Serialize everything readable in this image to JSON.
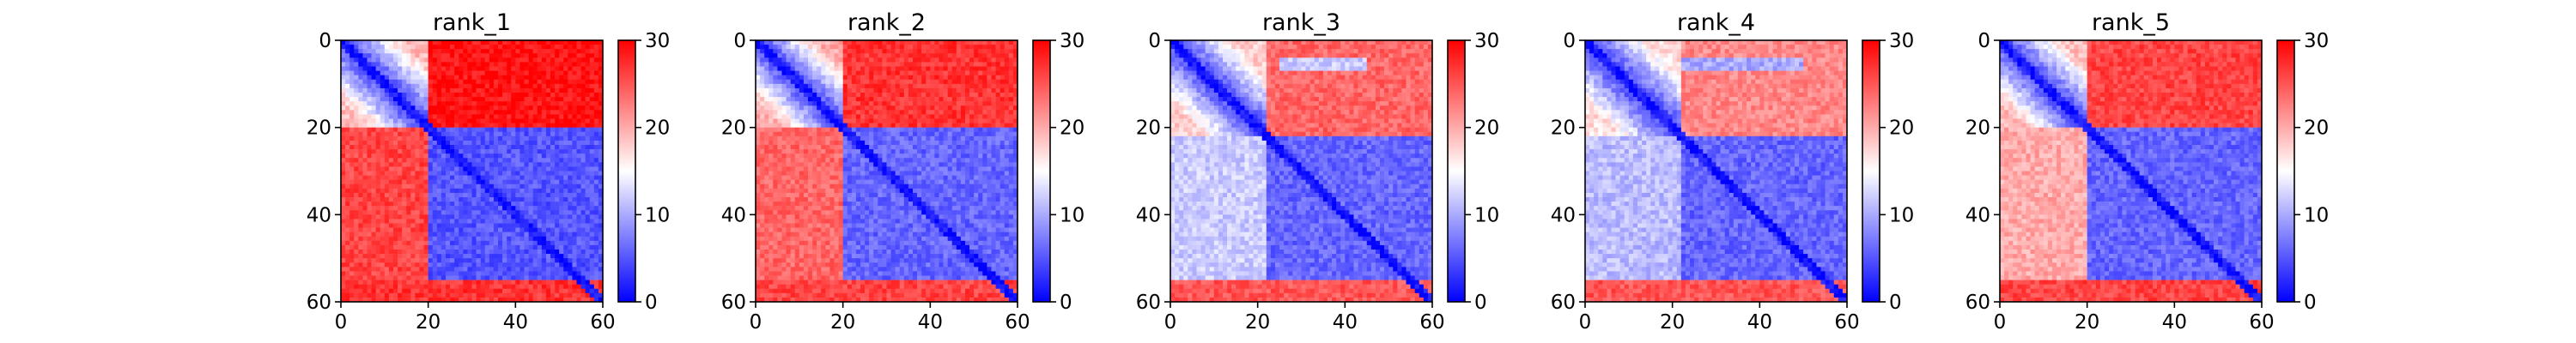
{
  "chart_data": [
    {
      "type": "heatmap",
      "title": "rank_1",
      "xlabel": "",
      "ylabel": "",
      "grid_size": [
        60,
        60
      ],
      "xlim": [
        0,
        60
      ],
      "ylim": [
        60,
        0
      ],
      "x_ticks": [
        0,
        20,
        40,
        60
      ],
      "y_ticks": [
        0,
        20,
        40,
        60
      ],
      "colorscale": {
        "min": 0,
        "max": 30,
        "ticks": [
          0,
          10,
          20,
          30
        ],
        "colors": [
          "#0000ff",
          "#ffffff",
          "#ff0000"
        ]
      },
      "grid": false,
      "block_boundary": 20,
      "values_description_regions": [
        {
          "rows": [
            0,
            20
          ],
          "cols": [
            0,
            20
          ],
          "value_near_diagonal": 3,
          "value_far": 19
        },
        {
          "rows": [
            0,
            20
          ],
          "cols": [
            20,
            60
          ],
          "value": 29
        },
        {
          "rows": [
            20,
            60
          ],
          "cols": [
            0,
            20
          ],
          "value": 26
        },
        {
          "rows": [
            20,
            55
          ],
          "cols": [
            20,
            60
          ],
          "value": 5
        },
        {
          "rows": [
            55,
            60
          ],
          "cols": [
            0,
            60
          ],
          "value": 27
        }
      ]
    },
    {
      "type": "heatmap",
      "title": "rank_2",
      "xlabel": "",
      "ylabel": "",
      "grid_size": [
        60,
        60
      ],
      "xlim": [
        0,
        60
      ],
      "ylim": [
        60,
        0
      ],
      "x_ticks": [
        0,
        20,
        40,
        60
      ],
      "y_ticks": [
        0,
        20,
        40,
        60
      ],
      "colorscale": {
        "min": 0,
        "max": 30,
        "ticks": [
          0,
          10,
          20,
          30
        ],
        "colors": [
          "#0000ff",
          "#ffffff",
          "#ff0000"
        ]
      },
      "grid": false,
      "block_boundary": 20,
      "values_description_regions": [
        {
          "rows": [
            0,
            20
          ],
          "cols": [
            0,
            20
          ],
          "value_near_diagonal": 3,
          "value_far": 20
        },
        {
          "rows": [
            0,
            20
          ],
          "cols": [
            20,
            60
          ],
          "value": 27
        },
        {
          "rows": [
            20,
            60
          ],
          "cols": [
            0,
            20
          ],
          "value": 24
        },
        {
          "rows": [
            20,
            55
          ],
          "cols": [
            20,
            60
          ],
          "value": 6
        },
        {
          "rows": [
            55,
            60
          ],
          "cols": [
            0,
            60
          ],
          "value": 26
        }
      ]
    },
    {
      "type": "heatmap",
      "title": "rank_3",
      "xlabel": "",
      "ylabel": "",
      "grid_size": [
        60,
        60
      ],
      "xlim": [
        0,
        60
      ],
      "ylim": [
        60,
        0
      ],
      "x_ticks": [
        0,
        20,
        40,
        60
      ],
      "y_ticks": [
        0,
        20,
        40,
        60
      ],
      "colorscale": {
        "min": 0,
        "max": 30,
        "ticks": [
          0,
          10,
          20,
          30
        ],
        "colors": [
          "#0000ff",
          "#ffffff",
          "#ff0000"
        ]
      },
      "grid": false,
      "block_boundary": 22,
      "values_description_regions": [
        {
          "rows": [
            0,
            22
          ],
          "cols": [
            0,
            22
          ],
          "value_near_diagonal": 3,
          "value_far": 18
        },
        {
          "rows": [
            0,
            22
          ],
          "cols": [
            22,
            60
          ],
          "value": 24
        },
        {
          "rows": [
            4,
            7
          ],
          "cols": [
            25,
            45
          ],
          "value": 12
        },
        {
          "rows": [
            22,
            60
          ],
          "cols": [
            0,
            22
          ],
          "value": 12
        },
        {
          "rows": [
            22,
            55
          ],
          "cols": [
            22,
            60
          ],
          "value": 6
        },
        {
          "rows": [
            55,
            60
          ],
          "cols": [
            0,
            60
          ],
          "value": 25
        }
      ]
    },
    {
      "type": "heatmap",
      "title": "rank_4",
      "xlabel": "",
      "ylabel": "",
      "grid_size": [
        60,
        60
      ],
      "xlim": [
        0,
        60
      ],
      "ylim": [
        60,
        0
      ],
      "x_ticks": [
        0,
        20,
        40,
        60
      ],
      "y_ticks": [
        0,
        20,
        40,
        60
      ],
      "colorscale": {
        "min": 0,
        "max": 30,
        "ticks": [
          0,
          10,
          20,
          30
        ],
        "colors": [
          "#0000ff",
          "#ffffff",
          "#ff0000"
        ]
      },
      "grid": false,
      "block_boundary": 22,
      "values_description_regions": [
        {
          "rows": [
            0,
            22
          ],
          "cols": [
            0,
            22
          ],
          "value_near_diagonal": 3,
          "value_far": 17
        },
        {
          "rows": [
            0,
            22
          ],
          "cols": [
            22,
            60
          ],
          "value": 22
        },
        {
          "rows": [
            4,
            7
          ],
          "cols": [
            22,
            50
          ],
          "value": 10
        },
        {
          "rows": [
            22,
            60
          ],
          "cols": [
            0,
            22
          ],
          "value": 11
        },
        {
          "rows": [
            22,
            55
          ],
          "cols": [
            22,
            60
          ],
          "value": 6
        },
        {
          "rows": [
            55,
            60
          ],
          "cols": [
            0,
            60
          ],
          "value": 25
        }
      ]
    },
    {
      "type": "heatmap",
      "title": "rank_5",
      "xlabel": "",
      "ylabel": "",
      "grid_size": [
        60,
        60
      ],
      "xlim": [
        0,
        60
      ],
      "ylim": [
        60,
        0
      ],
      "x_ticks": [
        0,
        20,
        40,
        60
      ],
      "y_ticks": [
        0,
        20,
        40,
        60
      ],
      "colorscale": {
        "min": 0,
        "max": 30,
        "ticks": [
          0,
          10,
          20,
          30
        ],
        "colors": [
          "#0000ff",
          "#ffffff",
          "#ff0000"
        ]
      },
      "grid": false,
      "block_boundary": 20,
      "values_description_regions": [
        {
          "rows": [
            0,
            20
          ],
          "cols": [
            0,
            20
          ],
          "value_near_diagonal": 3,
          "value_far": 19
        },
        {
          "rows": [
            0,
            20
          ],
          "cols": [
            20,
            60
          ],
          "value": 26
        },
        {
          "rows": [
            20,
            60
          ],
          "cols": [
            0,
            20
          ],
          "value": 20
        },
        {
          "rows": [
            20,
            55
          ],
          "cols": [
            20,
            60
          ],
          "value": 6
        },
        {
          "rows": [
            55,
            60
          ],
          "cols": [
            0,
            60
          ],
          "value": 26
        }
      ]
    }
  ]
}
